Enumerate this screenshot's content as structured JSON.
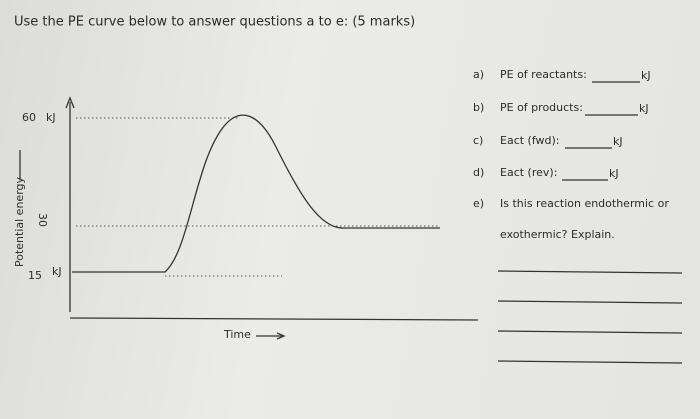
{
  "title": "Use the PE curve below to answer questions a to e: (5 marks)",
  "graph": {
    "y_axis_label": "Potential energy",
    "x_axis_label": "Time",
    "levels": [
      {
        "value": 60,
        "unit": "kJ"
      },
      {
        "value": 30
      },
      {
        "value": 15,
        "unit": "kJ"
      }
    ]
  },
  "questions": [
    {
      "letter": "a)",
      "text": "PE of reactants:",
      "unit": "kJ"
    },
    {
      "letter": "b)",
      "text": "PE of products:",
      "unit": "kJ"
    },
    {
      "letter": "c)",
      "text": "Eact (fwd):",
      "unit": "kJ"
    },
    {
      "letter": "d)",
      "text": "Eact (rev):",
      "unit": "kJ"
    },
    {
      "letter": "e)",
      "text": "Is this reaction endothermic or",
      "text2": "exothermic? Explain."
    }
  ]
}
